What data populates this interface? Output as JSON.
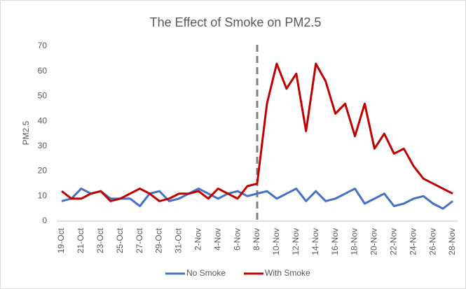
{
  "chart_data": {
    "type": "line",
    "title": "The Effect of Smoke on PM2.5",
    "y_label": "PM2.5",
    "categories": [
      "19-Oct",
      null,
      "21-Oct",
      null,
      "23-Oct",
      null,
      "25-Oct",
      null,
      "27-Oct",
      null,
      "29-Oct",
      null,
      "31-Oct",
      null,
      "2-Nov",
      null,
      "4-Nov",
      null,
      "6-Nov",
      null,
      "8-Nov",
      null,
      "10-Nov",
      null,
      "12-Nov",
      null,
      "14-Nov",
      null,
      "16-Nov",
      null,
      "18-Nov",
      null,
      "20-Nov",
      null,
      "22-Nov",
      null,
      "24-Nov",
      null,
      "26-Nov",
      null,
      "28-Nov"
    ],
    "series": [
      {
        "name": "No Smoke",
        "color": "#4472c4",
        "values": [
          8,
          9,
          13,
          11,
          12,
          9,
          9,
          9,
          6,
          11,
          12,
          8,
          9,
          11,
          13,
          11,
          9,
          11,
          12,
          10,
          11,
          12,
          9,
          11,
          13,
          8,
          12,
          8,
          9,
          11,
          13,
          7,
          9,
          11,
          6,
          7,
          9,
          10,
          7,
          5,
          8
        ]
      },
      {
        "name": "With Smoke",
        "color": "#c00000",
        "values": [
          12,
          9,
          9,
          11,
          12,
          8,
          9,
          11,
          13,
          11,
          8,
          9,
          11,
          11,
          12,
          9,
          13,
          11,
          9,
          14,
          15,
          47,
          63,
          53,
          59,
          36,
          63,
          56,
          43,
          47,
          34,
          47,
          29,
          35,
          27,
          29,
          22,
          17,
          15,
          13,
          11
        ]
      }
    ],
    "vline_at": "8-Nov",
    "ylim": [
      0,
      70
    ],
    "yticks": [
      0,
      10,
      20,
      30,
      40,
      50,
      60,
      70
    ],
    "grid": false
  }
}
